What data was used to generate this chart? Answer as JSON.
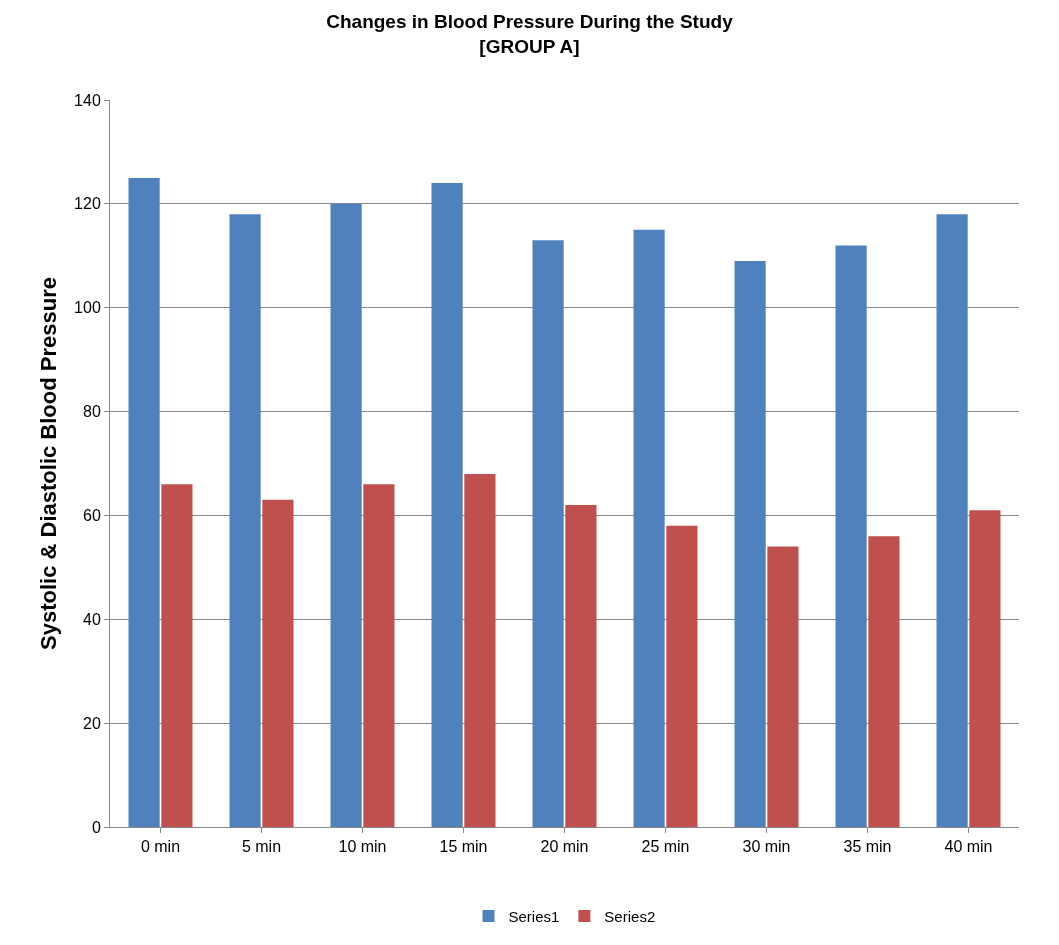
{
  "chart_data": {
    "type": "bar",
    "title": "Changes in Blood Pressure During the Study",
    "subtitle": "[GROUP A]",
    "ylabel": "Systolic & Diastolic Blood Pressure",
    "categories": [
      "0 min",
      "5 min",
      "10 min",
      "15 min",
      "20 min",
      "25 min",
      "30 min",
      "35 min",
      "40 min"
    ],
    "series": [
      {
        "name": "Series1",
        "color": "#4f81bd",
        "values": [
          125,
          118,
          120,
          124,
          113,
          115,
          109,
          112,
          118
        ]
      },
      {
        "name": "Series2",
        "color": "#c0504d",
        "values": [
          66,
          63,
          66,
          68,
          62,
          58,
          54,
          56,
          61
        ]
      }
    ],
    "ylim": [
      0,
      140
    ],
    "yticks": [
      0,
      20,
      40,
      60,
      80,
      100,
      120,
      140
    ],
    "grid": "y",
    "legend": "bottom"
  }
}
